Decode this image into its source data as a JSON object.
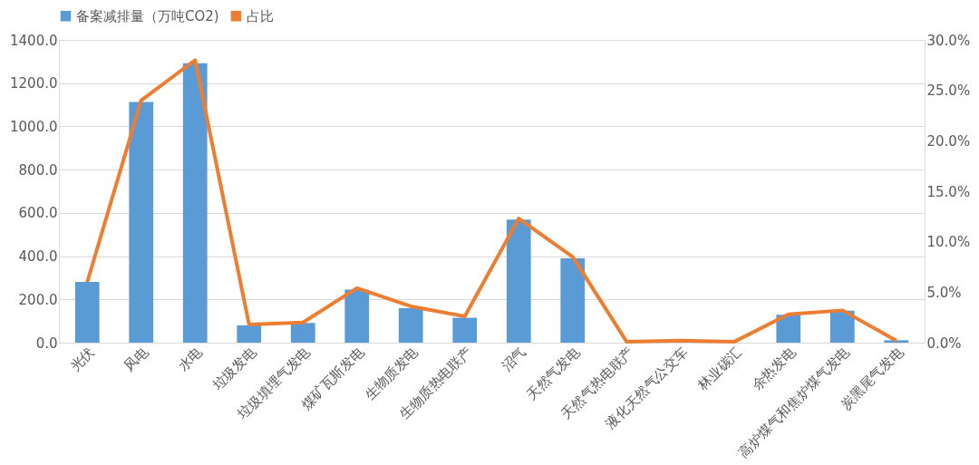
{
  "chart_data": {
    "type": "bar",
    "categories": [
      "光伏",
      "风电",
      "水电",
      "垃圾发电",
      "垃圾填埋气发电",
      "煤矿瓦斯发电",
      "生物质发电",
      "生物质热电联产",
      "沼气",
      "天然气发电",
      "天然气热电联产",
      "液化天然气公交车",
      "林业碳汇",
      "余热发电",
      "高炉煤气和焦炉煤气发电",
      "炭黑尾气发电"
    ],
    "series": [
      {
        "name": "备案减排量（万吨CO2)",
        "color": "#5b9bd5",
        "values": [
          281,
          1113,
          1292,
          80,
          91,
          245,
          159,
          115,
          569,
          390,
          null,
          null,
          null,
          129,
          148,
          11
        ]
      },
      {
        "name": "占比",
        "type": "line",
        "axis": "y2",
        "color": "#ed7d31",
        "values": [
          6.0,
          24.0,
          28.0,
          1.8,
          2.0,
          5.4,
          3.6,
          2.6,
          12.3,
          8.5,
          0.1,
          0.2,
          0.1,
          2.8,
          3.2,
          0.2
        ]
      }
    ],
    "ylim": [
      0,
      1400
    ],
    "yticks": [
      {
        "value": 0,
        "label": "0.0"
      },
      {
        "value": 200,
        "label": "200.0"
      },
      {
        "value": 400,
        "label": "400.0"
      },
      {
        "value": 600,
        "label": "600.0"
      },
      {
        "value": 800,
        "label": "800.0"
      },
      {
        "value": 1000,
        "label": "1000.0"
      },
      {
        "value": 1200,
        "label": "1200.0"
      },
      {
        "value": 1400,
        "label": "1400.0"
      }
    ],
    "y2lim": [
      0,
      30
    ],
    "y2ticks": [
      {
        "value": 0,
        "label": "0.0%"
      },
      {
        "value": 5,
        "label": "5.0%"
      },
      {
        "value": 10,
        "label": "10.0%"
      },
      {
        "value": 15,
        "label": "15.0%"
      },
      {
        "value": 20,
        "label": "20.0%"
      },
      {
        "value": 25,
        "label": "25.0%"
      },
      {
        "value": 30,
        "label": "30.0%"
      }
    ],
    "grid": "y",
    "legend": "top",
    "marker": "none",
    "line_style": "solid"
  }
}
